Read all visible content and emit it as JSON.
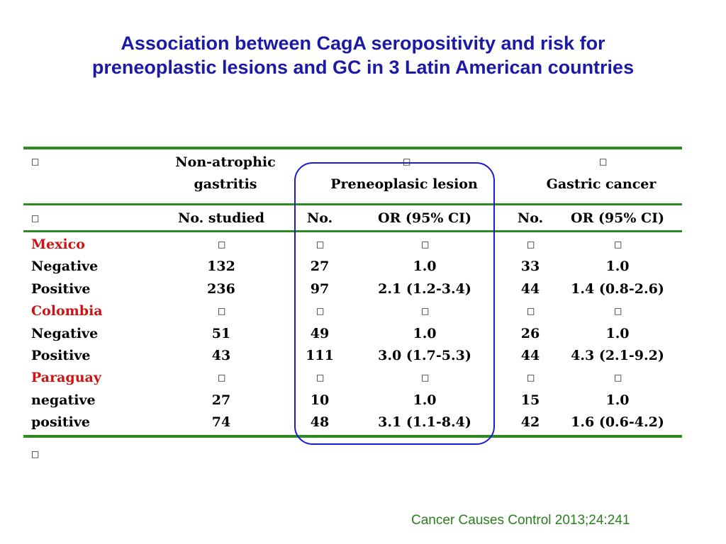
{
  "title": {
    "line1": "Association between CagA seropositivity and risk for",
    "line2": "preneoplastic lesions and GC in 3 Latin American countries"
  },
  "headers": {
    "group1_line1": "Non-atrophic",
    "group1_line2": "gastritis",
    "group2": "Preneoplasic lesion",
    "group3": "Gastric cancer",
    "no_studied": "No. studied",
    "no_pre": "No.",
    "or_pre": "OR (95% CI)",
    "no_gc": "No.",
    "or_gc": "OR (95% CI)"
  },
  "rows": [
    {
      "label": "Mexico",
      "is_country": true,
      "nag": "",
      "pre_no": "",
      "pre_or": "",
      "gc_no": "",
      "gc_or": ""
    },
    {
      "label": "Negative",
      "is_country": false,
      "nag": "132",
      "pre_no": "27",
      "pre_or": "1.0",
      "gc_no": "33",
      "gc_or": "1.0"
    },
    {
      "label": "Positive",
      "is_country": false,
      "nag": "236",
      "pre_no": "97",
      "pre_or": "2.1 (1.2-3.4)",
      "gc_no": "44",
      "gc_or": "1.4 (0.8-2.6)"
    },
    {
      "label": "Colombia",
      "is_country": true,
      "nag": "",
      "pre_no": "",
      "pre_or": "",
      "gc_no": "",
      "gc_or": ""
    },
    {
      "label": "Negative",
      "is_country": false,
      "nag": "51",
      "pre_no": "49",
      "pre_or": "1.0",
      "gc_no": "26",
      "gc_or": "1.0"
    },
    {
      "label": "Positive",
      "is_country": false,
      "nag": "43",
      "pre_no": "111",
      "pre_or": "3.0 (1.7-5.3)",
      "gc_no": "44",
      "gc_or": "4.3 (2.1-9.2)"
    },
    {
      "label": "Paraguay",
      "is_country": true,
      "nag": "",
      "pre_no": "",
      "pre_or": "",
      "gc_no": "",
      "gc_or": ""
    },
    {
      "label": "negative",
      "is_country": false,
      "nag": "27",
      "pre_no": "10",
      "pre_or": "1.0",
      "gc_no": "15",
      "gc_or": "1.0"
    },
    {
      "label": "positive",
      "is_country": false,
      "nag": "74",
      "pre_no": "48",
      "pre_or": "3.1 (1.1-8.4)",
      "gc_no": "42",
      "gc_or": "1.6 (0.6-4.2)"
    }
  ],
  "citation": "Cancer Causes Control 2013;24:241",
  "colors": {
    "title": "#1a1aa6",
    "country_label": "#d11212",
    "rule": "#2e8b22",
    "highlight_oval": "#1a1ad6",
    "citation": "#2a7e1e"
  }
}
